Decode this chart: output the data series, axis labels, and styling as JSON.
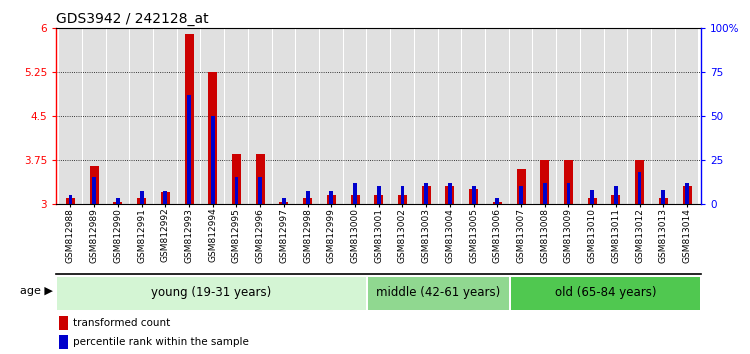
{
  "title": "GDS3942 / 242128_at",
  "samples": [
    "GSM812988",
    "GSM812989",
    "GSM812990",
    "GSM812991",
    "GSM812992",
    "GSM812993",
    "GSM812994",
    "GSM812995",
    "GSM812996",
    "GSM812997",
    "GSM812998",
    "GSM812999",
    "GSM813000",
    "GSM813001",
    "GSM813002",
    "GSM813003",
    "GSM813004",
    "GSM813005",
    "GSM813006",
    "GSM813007",
    "GSM813008",
    "GSM813009",
    "GSM813010",
    "GSM813011",
    "GSM813012",
    "GSM813013",
    "GSM813014"
  ],
  "red_values": [
    3.1,
    3.65,
    3.02,
    3.1,
    3.2,
    5.9,
    5.25,
    3.85,
    3.85,
    3.02,
    3.1,
    3.15,
    3.15,
    3.15,
    3.15,
    3.3,
    3.3,
    3.25,
    3.02,
    3.6,
    3.75,
    3.75,
    3.1,
    3.15,
    3.75,
    3.1,
    3.3
  ],
  "percentile_values": [
    5,
    15,
    3,
    7,
    7,
    62,
    50,
    15,
    15,
    3,
    7,
    7,
    12,
    10,
    10,
    12,
    12,
    10,
    3,
    10,
    12,
    12,
    8,
    10,
    18,
    8,
    12
  ],
  "groups": [
    {
      "label": "young (19-31 years)",
      "start": 0,
      "end": 13,
      "color": "#d4f5d4"
    },
    {
      "label": "middle (42-61 years)",
      "start": 13,
      "end": 19,
      "color": "#90d890"
    },
    {
      "label": "old (65-84 years)",
      "start": 19,
      "end": 27,
      "color": "#50c850"
    }
  ],
  "ylim_left": [
    3.0,
    6.0
  ],
  "ylim_right": [
    0,
    100
  ],
  "yticks_left": [
    3.0,
    3.75,
    4.5,
    5.25,
    6.0
  ],
  "yticks_right": [
    0,
    25,
    50,
    75,
    100
  ],
  "ytick_labels_right": [
    "0",
    "25",
    "50",
    "75",
    "100%"
  ],
  "red_color": "#cc0000",
  "blue_color": "#0000cc",
  "bar_edge_color": "#bbbbbb",
  "plot_bg_color": "#ffffff",
  "legend_red": "transformed count",
  "legend_blue": "percentile rank within the sample",
  "title_fontsize": 10,
  "tick_fontsize": 6.5,
  "group_fontsize": 8.5
}
